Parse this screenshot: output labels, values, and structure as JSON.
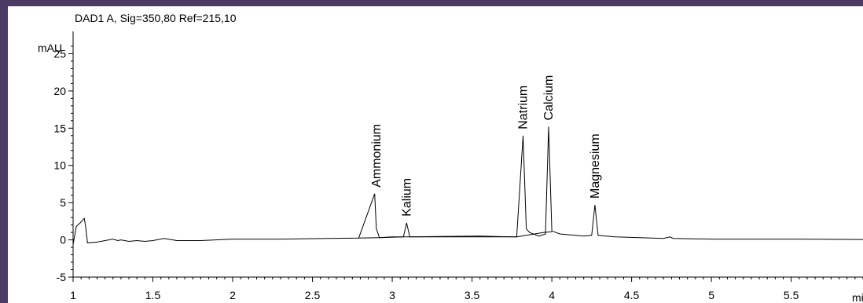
{
  "chart_data": {
    "type": "line",
    "title": "DAD1 A, Sig=350,80 Ref=215,10",
    "ylabel": "mAU",
    "xlabel": "mi",
    "xlim": [
      1,
      5.95
    ],
    "ylim": [
      -5,
      28
    ],
    "x_ticks": [
      1,
      1.5,
      2,
      2.5,
      3,
      3.5,
      4,
      4.5,
      5,
      5.5
    ],
    "x_tick_labels": [
      "1",
      "1.5",
      "2",
      "2.5",
      "3",
      "3.5",
      "4",
      "4.5",
      "5",
      "5.5"
    ],
    "y_ticks": [
      -5,
      0,
      5,
      10,
      15,
      20,
      25
    ],
    "y_tick_labels": [
      "-5",
      "0",
      "5",
      "10",
      "15",
      "20",
      "25"
    ],
    "grid": false,
    "series": [
      {
        "values": [
          [
            1.0,
            -0.6
          ],
          [
            1.02,
            1.8
          ],
          [
            1.05,
            2.4
          ],
          [
            1.07,
            2.9
          ],
          [
            1.08,
            1.6
          ],
          [
            1.09,
            -0.4
          ],
          [
            1.15,
            -0.3
          ],
          [
            1.2,
            -0.1
          ],
          [
            1.25,
            0.1
          ],
          [
            1.28,
            -0.1
          ],
          [
            1.3,
            0.0
          ],
          [
            1.35,
            -0.2
          ],
          [
            1.4,
            -0.1
          ],
          [
            1.45,
            -0.2
          ],
          [
            1.5,
            -0.1
          ],
          [
            1.57,
            0.2
          ],
          [
            1.65,
            -0.1
          ],
          [
            1.8,
            -0.1
          ],
          [
            2.0,
            0.1
          ],
          [
            2.3,
            0.1
          ],
          [
            2.6,
            0.2
          ],
          [
            2.79,
            0.25
          ],
          [
            2.89,
            6.2
          ],
          [
            2.9,
            1.5
          ],
          [
            2.92,
            0.3
          ],
          [
            3.0,
            0.4
          ],
          [
            3.07,
            0.4
          ],
          [
            3.09,
            2.3
          ],
          [
            3.11,
            0.4
          ],
          [
            3.3,
            0.45
          ],
          [
            3.55,
            0.5
          ],
          [
            3.78,
            0.4
          ],
          [
            3.82,
            14.0
          ],
          [
            3.84,
            1.5
          ],
          [
            3.86,
            1.0
          ],
          [
            3.92,
            0.5
          ],
          [
            3.96,
            0.8
          ],
          [
            3.98,
            15.2
          ],
          [
            4.0,
            1.2
          ],
          [
            4.05,
            0.8
          ],
          [
            4.2,
            0.5
          ],
          [
            4.25,
            0.6
          ],
          [
            4.27,
            4.7
          ],
          [
            4.29,
            0.6
          ],
          [
            4.4,
            0.4
          ],
          [
            4.7,
            0.2
          ],
          [
            4.74,
            0.4
          ],
          [
            4.76,
            0.2
          ],
          [
            5.0,
            0.1
          ],
          [
            5.5,
            0.1
          ],
          [
            5.95,
            0.05
          ]
        ]
      },
      {
        "values": [
          [
            2.79,
            0.25
          ],
          [
            2.92,
            0.3
          ],
          [
            3.07,
            0.4
          ],
          [
            3.11,
            0.4
          ],
          [
            3.78,
            0.4
          ],
          [
            3.95,
            1.0
          ],
          [
            4.0,
            1.1
          ]
        ]
      }
    ],
    "annotations": [
      {
        "text": "Ammonium",
        "x": 2.9
      },
      {
        "text": "Kalium",
        "x": 3.09
      },
      {
        "text": "Natrium",
        "x": 3.82
      },
      {
        "text": "Calcium",
        "x": 3.98
      },
      {
        "text": "Magnesium",
        "x": 4.27
      }
    ]
  }
}
